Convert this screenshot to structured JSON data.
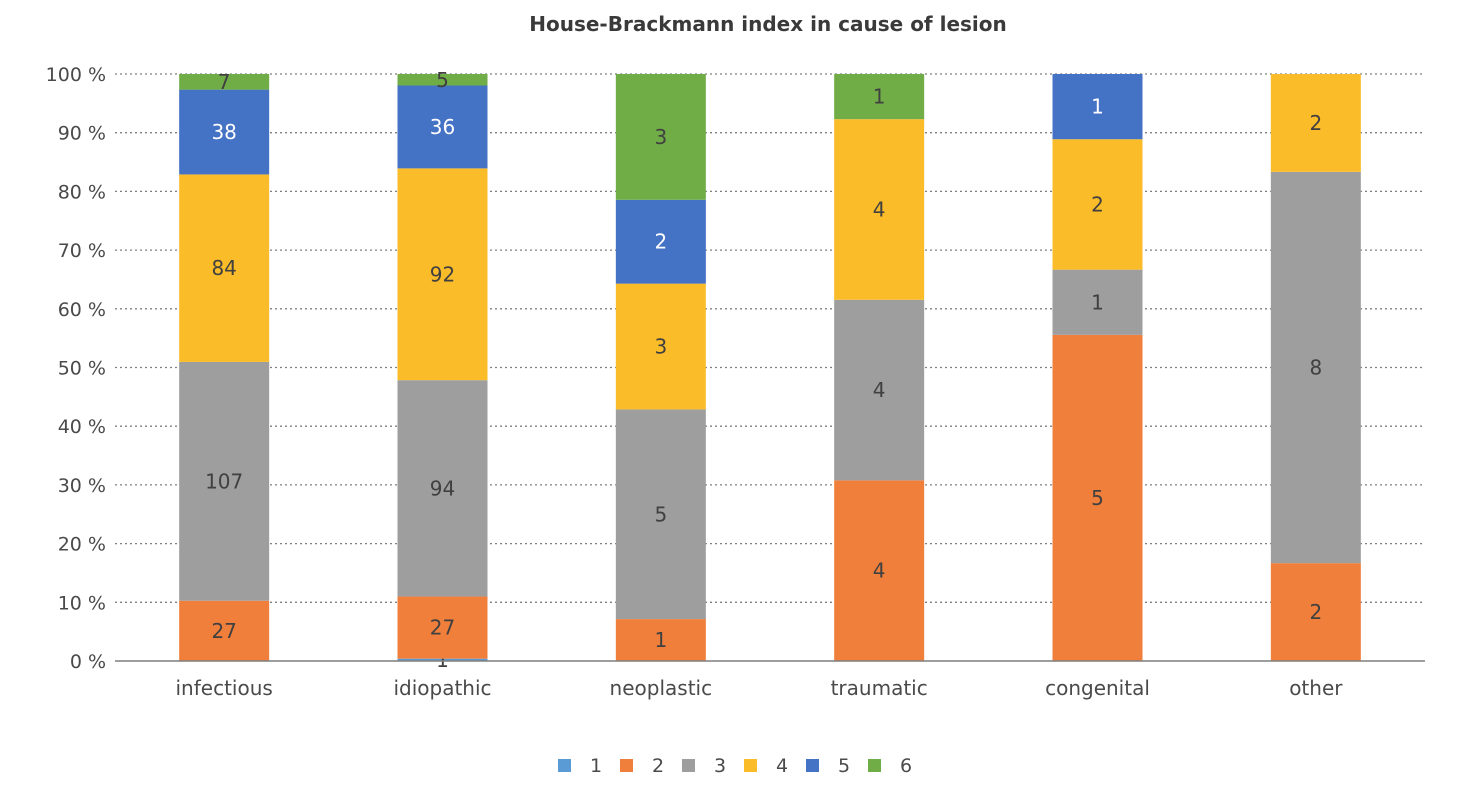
{
  "chart_data": {
    "type": "bar",
    "stacked": "percent",
    "title": "House-Brackmann index in cause of lesion",
    "xlabel": "",
    "ylabel": "",
    "categories": [
      "infectious",
      "idiopathic",
      "neoplastic",
      "traumatic",
      "congenital",
      "other"
    ],
    "y_ticks": [
      "0 %",
      "10 %",
      "20 %",
      "30 %",
      "40 %",
      "50 %",
      "60 %",
      "70 %",
      "80 %",
      "90 %",
      "100 %"
    ],
    "ylim": [
      0,
      100
    ],
    "grid": "dotted horizontal",
    "legend_position": "bottom",
    "series": [
      {
        "name": "1",
        "color": "#5B9BD5",
        "values": [
          0,
          1,
          0,
          0,
          0,
          0
        ]
      },
      {
        "name": "2",
        "color": "#F07F3C",
        "values": [
          27,
          27,
          1,
          4,
          5,
          2
        ]
      },
      {
        "name": "3",
        "color": "#9E9E9E",
        "values": [
          107,
          94,
          5,
          4,
          1,
          8
        ]
      },
      {
        "name": "4",
        "color": "#FBBC2A",
        "values": [
          84,
          92,
          3,
          4,
          2,
          2
        ]
      },
      {
        "name": "5",
        "color": "#4472C4",
        "values": [
          38,
          36,
          2,
          0,
          1,
          0
        ]
      },
      {
        "name": "6",
        "color": "#70AD47",
        "values": [
          7,
          5,
          3,
          1,
          0,
          0
        ]
      }
    ]
  }
}
